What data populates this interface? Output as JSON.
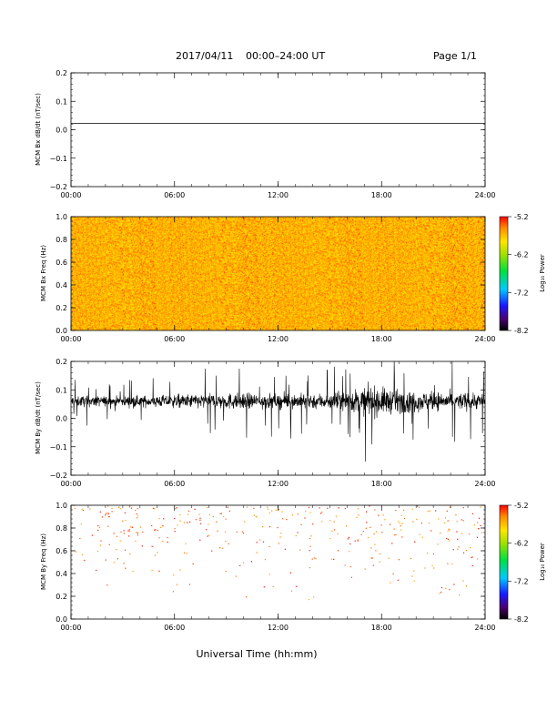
{
  "header": {
    "date": "2017/04/11",
    "range": "00:00–24:00 UT",
    "page": "Page 1/1"
  },
  "xaxis": {
    "label": "Universal Time (hh:mm)",
    "ticks": [
      "00:00",
      "06:00",
      "12:00",
      "18:00",
      "24:00"
    ]
  },
  "colorbar": {
    "label": "Log₁₀ Power",
    "ticks": [
      "-5.2",
      "-6.2",
      "-7.2",
      "-8.2"
    ],
    "range": [
      -8.2,
      -5.2
    ]
  },
  "chart_data": [
    {
      "type": "line",
      "ylabel": "MCM Bx dB/dt (nT/sec)",
      "ylim": [
        -0.2,
        0.2
      ],
      "yticks": [
        "0.2",
        "0.1",
        "0.0",
        "−0.1",
        "−0.2"
      ],
      "xlim": [
        0,
        24
      ],
      "series": [
        {
          "x": [
            0,
            24
          ],
          "y": [
            0.022,
            0.022
          ]
        }
      ]
    },
    {
      "type": "heatmap",
      "ylabel": "MCM Bx Freq (Hz)",
      "ylim": [
        0.0,
        1.0
      ],
      "yticks": [
        "1.0",
        "0.8",
        "0.6",
        "0.4",
        "0.2",
        "0.0"
      ],
      "xlim": [
        0,
        24
      ],
      "log10_power_typical": [
        -6.2,
        -5.2
      ]
    },
    {
      "type": "line",
      "ylabel": "MCM By dB/dt (nT/sec)",
      "ylim": [
        -0.2,
        0.2
      ],
      "yticks": [
        "0.2",
        "0.1",
        "0.0",
        "−0.1",
        "−0.2"
      ],
      "xlim": [
        0,
        24
      ],
      "baseline": 0.06,
      "noise_envelope": [
        {
          "t": 0,
          "amp": 0.035
        },
        {
          "t": 3,
          "amp": 0.03
        },
        {
          "t": 6,
          "amp": 0.04
        },
        {
          "t": 9,
          "amp": 0.05
        },
        {
          "t": 12,
          "amp": 0.045
        },
        {
          "t": 15,
          "amp": 0.05
        },
        {
          "t": 17.5,
          "amp": 0.09
        },
        {
          "t": 19,
          "amp": 0.07
        },
        {
          "t": 21,
          "amp": 0.055
        },
        {
          "t": 24,
          "amp": 0.05
        }
      ]
    },
    {
      "type": "heatmap",
      "ylabel": "MCM By Freq (Hz)",
      "ylim": [
        0.0,
        1.0
      ],
      "yticks": [
        "1.0",
        "0.8",
        "0.6",
        "0.4",
        "0.2",
        "0.0"
      ],
      "xlim": [
        0,
        24
      ],
      "log10_power_typical": [
        -5.6,
        -5.2
      ]
    }
  ]
}
